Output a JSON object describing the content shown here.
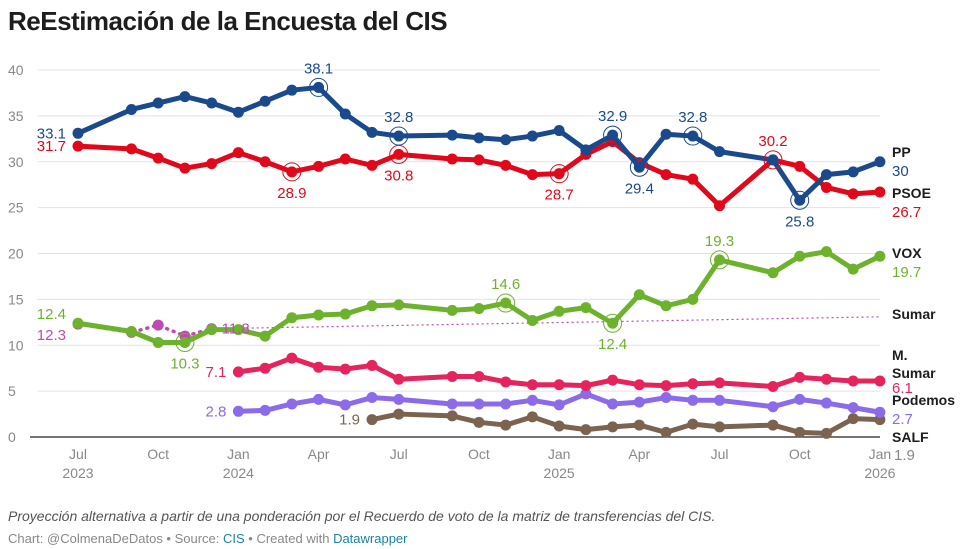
{
  "title": "ReEstimación de la Encuesta del CIS",
  "notes": "Proyección alternativa a partir de una ponderación por el Recuerdo de voto de la matriz de transferencias del CIS.",
  "credit": {
    "chart_prefix": "Chart: @ColmenaDeDatos • Source: ",
    "source_link": "CIS",
    "created_prefix": " • Created with ",
    "tool_link": "Datawrapper"
  },
  "chart_data": {
    "type": "line",
    "title": "ReEstimación de la Encuesta del CIS",
    "xlabel": "",
    "ylabel": "",
    "ylim": [
      0,
      40
    ],
    "yticks": [
      0,
      5,
      10,
      15,
      20,
      25,
      30,
      35,
      40
    ],
    "grid": true,
    "legend": "direct labels at line ends (right)",
    "xticks": [
      {
        "date": "2023-07",
        "label": "Jul",
        "year": "2023"
      },
      {
        "date": "2023-10",
        "label": "Oct",
        "year": ""
      },
      {
        "date": "2024-01",
        "label": "Jan",
        "year": "2024"
      },
      {
        "date": "2024-04",
        "label": "Apr",
        "year": ""
      },
      {
        "date": "2024-07",
        "label": "Jul",
        "year": ""
      },
      {
        "date": "2024-10",
        "label": "Oct",
        "year": ""
      },
      {
        "date": "2025-01",
        "label": "Jan",
        "year": "2025"
      },
      {
        "date": "2025-04",
        "label": "Apr",
        "year": ""
      },
      {
        "date": "2025-07",
        "label": "Jul",
        "year": ""
      },
      {
        "date": "2025-10",
        "label": "Oct",
        "year": ""
      },
      {
        "date": "2026-01",
        "label": "Jan",
        "year": "2026"
      }
    ],
    "x": [
      "2023-07",
      "2023-09",
      "2023-10",
      "2023-11",
      "2023-12",
      "2024-01",
      "2024-02",
      "2024-03",
      "2024-04",
      "2024-05",
      "2024-06",
      "2024-07",
      "2024-09",
      "2024-10",
      "2024-11",
      "2024-12",
      "2025-01",
      "2025-02",
      "2025-03",
      "2025-04",
      "2025-05",
      "2025-06",
      "2025-07",
      "2025-09",
      "2025-10",
      "2025-11",
      "2025-12",
      "2026-01"
    ],
    "series": [
      {
        "name": "PP",
        "color": "#1b4a8c",
        "style": "solid",
        "end_value": "30",
        "values": [
          33.1,
          35.7,
          36.4,
          37.1,
          36.4,
          35.4,
          36.6,
          37.8,
          38.1,
          35.2,
          33.2,
          32.8,
          32.9,
          32.6,
          32.4,
          32.8,
          33.4,
          31.3,
          32.9,
          29.4,
          33.0,
          32.8,
          31.1,
          30.2,
          25.8,
          28.6,
          28.9,
          30.0
        ]
      },
      {
        "name": "PSOE",
        "color": "#e0081a",
        "style": "solid",
        "end_value": "26.7",
        "values": [
          31.7,
          31.4,
          30.4,
          29.3,
          29.8,
          31.0,
          30.0,
          28.9,
          29.5,
          30.3,
          29.6,
          30.8,
          30.3,
          30.2,
          29.6,
          28.6,
          28.7,
          30.8,
          32.2,
          29.9,
          28.6,
          28.1,
          25.2,
          30.2,
          29.5,
          27.2,
          26.5,
          26.7
        ]
      },
      {
        "name": "VOX",
        "color": "#6db22d",
        "style": "solid",
        "end_value": "19.7",
        "values": [
          12.4,
          11.5,
          10.3,
          10.3,
          11.7,
          11.7,
          11.0,
          13.0,
          13.3,
          13.4,
          14.3,
          14.4,
          13.8,
          14.0,
          14.6,
          12.7,
          13.7,
          14.1,
          12.4,
          15.5,
          14.3,
          15.0,
          19.3,
          17.9,
          19.7,
          20.2,
          18.3,
          19.7
        ]
      },
      {
        "name": "Sumar",
        "color": "#c04ab0",
        "style": "dotted",
        "end_value": "",
        "values": [
          12.3,
          11.4,
          12.2,
          11.0,
          11.8,
          null,
          null,
          null,
          null,
          null,
          null,
          null,
          null,
          null,
          null,
          null,
          null,
          null,
          null,
          null,
          null,
          null,
          null,
          null,
          null,
          null,
          null,
          13.1
        ]
      },
      {
        "name": "M. Sumar",
        "color": "#e5245e",
        "style": "solid",
        "end_value": "6.1",
        "values": [
          null,
          null,
          null,
          null,
          null,
          7.1,
          7.5,
          8.6,
          7.6,
          7.4,
          7.8,
          6.3,
          6.6,
          6.6,
          6.0,
          5.7,
          5.7,
          5.6,
          6.2,
          5.7,
          5.6,
          5.8,
          5.9,
          5.5,
          6.5,
          6.3,
          6.1,
          6.1
        ]
      },
      {
        "name": "Podemos",
        "color": "#8b6bea",
        "style": "solid",
        "end_value": "2.7",
        "values": [
          null,
          null,
          null,
          null,
          null,
          2.8,
          2.9,
          3.6,
          4.1,
          3.5,
          4.3,
          4.1,
          3.6,
          3.6,
          3.6,
          4.0,
          3.5,
          4.7,
          3.6,
          3.8,
          4.3,
          4.0,
          4.0,
          3.3,
          4.1,
          3.7,
          3.2,
          2.7
        ]
      },
      {
        "name": "SALF",
        "color": "#7b6350",
        "style": "solid",
        "end_value": "1.9",
        "values": [
          null,
          null,
          null,
          null,
          null,
          null,
          null,
          null,
          null,
          null,
          1.9,
          2.5,
          2.3,
          1.6,
          1.3,
          2.2,
          1.2,
          0.8,
          1.1,
          1.3,
          0.5,
          1.4,
          1.1,
          1.3,
          0.5,
          0.4,
          2.0,
          1.9
        ]
      }
    ],
    "annotations": [
      {
        "series": "PP",
        "date": "2023-07",
        "text": "33.1",
        "position": "left",
        "ring": false
      },
      {
        "series": "PP",
        "date": "2024-04",
        "text": "38.1",
        "position": "above",
        "ring": true
      },
      {
        "series": "PP",
        "date": "2024-07",
        "text": "32.8",
        "position": "above",
        "ring": true
      },
      {
        "series": "PP",
        "date": "2025-03",
        "text": "32.9",
        "position": "above",
        "ring": true
      },
      {
        "series": "PP",
        "date": "2025-04",
        "text": "29.4",
        "position": "below",
        "ring": true
      },
      {
        "series": "PP",
        "date": "2025-06",
        "text": "32.8",
        "position": "above",
        "ring": true
      },
      {
        "series": "PP",
        "date": "2025-10",
        "text": "25.8",
        "position": "below",
        "ring": true
      },
      {
        "series": "PSOE",
        "date": "2023-07",
        "text": "31.7",
        "position": "left",
        "ring": false
      },
      {
        "series": "PSOE",
        "date": "2024-03",
        "text": "28.9",
        "position": "below",
        "ring": true
      },
      {
        "series": "PSOE",
        "date": "2024-07",
        "text": "30.8",
        "position": "below",
        "ring": true
      },
      {
        "series": "PSOE",
        "date": "2025-01",
        "text": "28.7",
        "position": "below",
        "ring": true
      },
      {
        "series": "PSOE",
        "date": "2025-09",
        "text": "30.2",
        "position": "above",
        "ring": true
      },
      {
        "series": "VOX",
        "date": "2023-07",
        "text": "12.4",
        "position": "left-above",
        "ring": false
      },
      {
        "series": "VOX",
        "date": "2023-11",
        "text": "10.3",
        "position": "below",
        "ring": true
      },
      {
        "series": "VOX",
        "date": "2024-11",
        "text": "14.6",
        "position": "above",
        "ring": true
      },
      {
        "series": "VOX",
        "date": "2025-03",
        "text": "12.4",
        "position": "below",
        "ring": true
      },
      {
        "series": "VOX",
        "date": "2025-07",
        "text": "19.3",
        "position": "above",
        "ring": true
      },
      {
        "series": "Sumar",
        "date": "2023-07",
        "text": "12.3",
        "position": "left-below",
        "ring": false
      },
      {
        "series": "Sumar",
        "date": "2023-12",
        "text": "11.8",
        "position": "right",
        "ring": false
      },
      {
        "series": "M. Sumar",
        "date": "2024-01",
        "text": "7.1",
        "position": "left",
        "ring": false
      },
      {
        "series": "Podemos",
        "date": "2024-01",
        "text": "2.8",
        "position": "left",
        "ring": false
      },
      {
        "series": "SALF",
        "date": "2024-06",
        "text": "1.9",
        "position": "left",
        "ring": false
      }
    ]
  }
}
